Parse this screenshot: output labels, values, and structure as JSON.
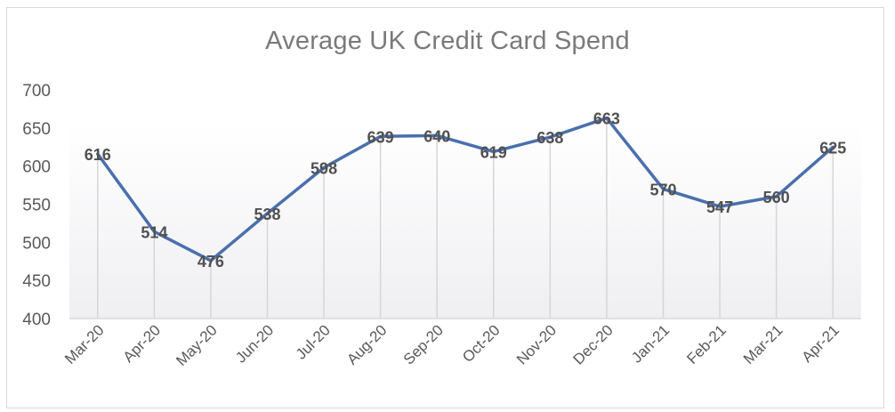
{
  "chart_data": {
    "type": "line",
    "title": "Average UK Credit Card Spend",
    "xlabel": "",
    "ylabel": "",
    "categories": [
      "Mar-20",
      "Apr-20",
      "May-20",
      "Jun-20",
      "Jul-20",
      "Aug-20",
      "Sep-20",
      "Oct-20",
      "Nov-20",
      "Dec-20",
      "Jan-21",
      "Feb-21",
      "Mar-21",
      "Apr-21"
    ],
    "series": [
      {
        "name": "Average UK Credit Card Spend",
        "values": [
          616,
          514,
          476,
          538,
          598,
          639,
          640,
          619,
          638,
          663,
          570,
          547,
          560,
          625
        ],
        "color": "#4a6fae"
      }
    ],
    "ylim": [
      400,
      700
    ],
    "yticks": [
      400,
      450,
      500,
      550,
      600,
      650,
      700
    ],
    "grid": "vertical drop lines",
    "legend": "none",
    "data_labels": true
  },
  "colors": {
    "line": "#4a6fae",
    "title": "#7a7a7a",
    "axis_text": "#595959",
    "border": "#d9d9d9"
  }
}
